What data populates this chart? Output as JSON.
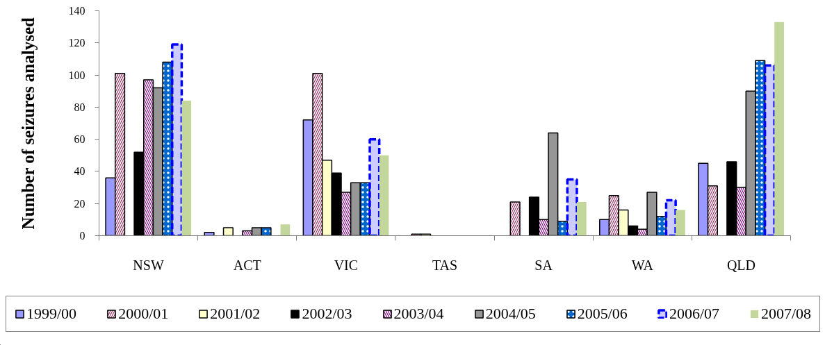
{
  "chart_data": {
    "type": "bar",
    "ylabel": "Number of seizures analysed",
    "categories": [
      "NSW",
      "ACT",
      "VIC",
      "TAS",
      "SA",
      "WA",
      "QLD"
    ],
    "ylim": [
      0,
      140
    ],
    "yticks": [
      0,
      20,
      40,
      60,
      80,
      100,
      120,
      140
    ],
    "grid": false,
    "legend": "bottom",
    "series": [
      {
        "name": "1999/00",
        "color": "#9999ff",
        "values": [
          36,
          2,
          72,
          null,
          null,
          10,
          45
        ]
      },
      {
        "name": "2000/01",
        "color": "#993366",
        "values": [
          101,
          null,
          101,
          1,
          21,
          25,
          31
        ]
      },
      {
        "name": "2001/02",
        "color": "#ffffcc",
        "values": [
          null,
          5,
          47,
          1,
          null,
          16,
          null
        ]
      },
      {
        "name": "2002/03",
        "color": "#000000",
        "values": [
          52,
          null,
          39,
          null,
          24,
          6,
          46
        ]
      },
      {
        "name": "2003/04",
        "color": "#800080",
        "values": [
          97,
          3,
          27,
          null,
          10,
          4,
          30
        ]
      },
      {
        "name": "2004/05",
        "color": "#969696",
        "values": [
          92,
          5,
          33,
          null,
          64,
          27,
          90
        ]
      },
      {
        "name": "2005/06",
        "color": "#0066cc",
        "values": [
          108,
          5,
          33,
          null,
          9,
          12,
          109
        ]
      },
      {
        "name": "2006/07",
        "color": "#0000ff",
        "line_style": "dashed",
        "values": [
          119,
          null,
          60,
          null,
          35,
          22,
          106
        ]
      },
      {
        "name": "2007/08",
        "color": "#c3d69b",
        "values": [
          84,
          7,
          50,
          null,
          21,
          16,
          133
        ]
      }
    ]
  }
}
